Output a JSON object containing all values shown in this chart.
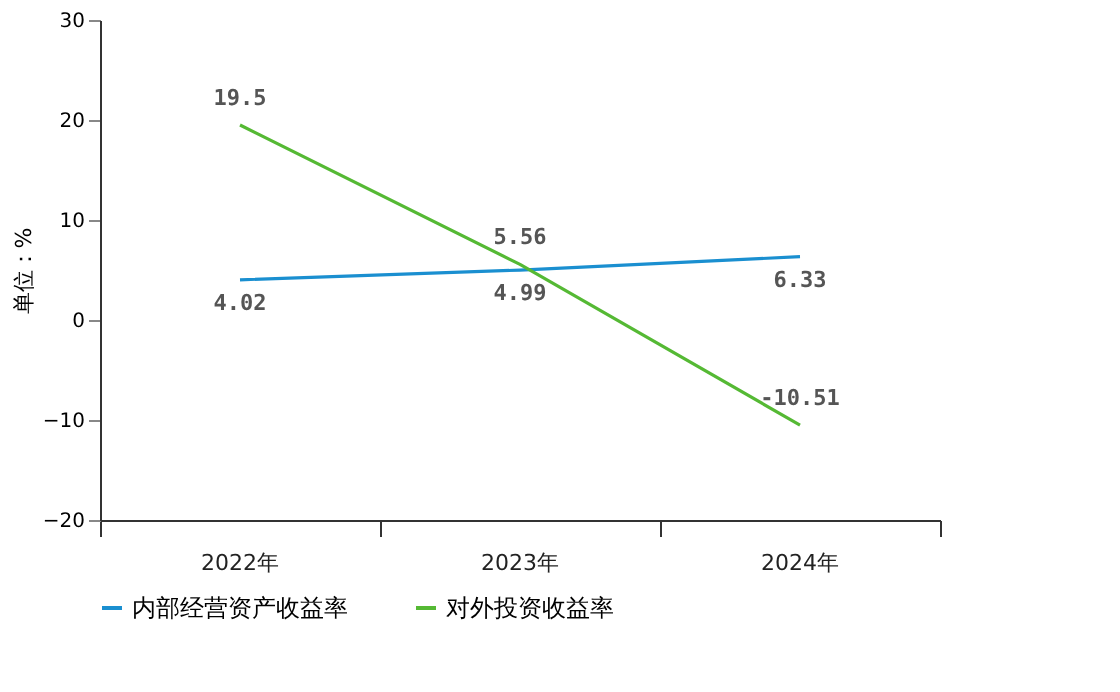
{
  "chart_data": {
    "type": "line",
    "ylabel": "单位：%",
    "categories": [
      "2022年",
      "2023年",
      "2024年"
    ],
    "series": [
      {
        "name": "内部经营资产收益率",
        "color": "#1a8fd0",
        "values": [
          4.02,
          4.99,
          6.33
        ]
      },
      {
        "name": "对外投资收益率",
        "color": "#55b934",
        "values": [
          19.5,
          5.56,
          -10.51
        ]
      }
    ],
    "ylim": [
      -20,
      30
    ],
    "yticks": [
      -20,
      -10,
      0,
      10,
      20,
      30
    ],
    "grid": false,
    "legend": "bottom",
    "data_labels": true,
    "marker": "none",
    "line_style": "solid"
  }
}
